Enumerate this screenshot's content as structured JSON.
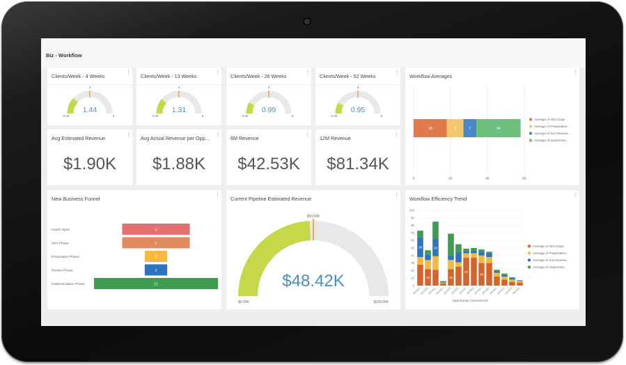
{
  "dashboard": {
    "title": "Biz - Workflow"
  },
  "colors": {
    "gauge_fill": "#c5d84a",
    "gauge_track": "#e8e8e8",
    "marker": "#f08a24",
    "value_text": "#4a8ccc"
  },
  "gauges": [
    {
      "title": "Clients/Week - 4 Weeks",
      "min": "0.00",
      "max": "6",
      "target": "3",
      "value": "1.44",
      "fraction": 0.24
    },
    {
      "title": "Clients/Week - 13 Weeks",
      "min": "0.00",
      "max": "6",
      "target": "3",
      "value": "1.31",
      "fraction": 0.22
    },
    {
      "title": "Clients/Week - 26 Weeks",
      "min": "0.00",
      "max": "6",
      "target": "3",
      "value": "0.99",
      "fraction": 0.165
    },
    {
      "title": "Clients/Week - 52 Weeks",
      "min": "0.00",
      "max": "6",
      "target": "3",
      "value": "0.95",
      "fraction": 0.158
    }
  ],
  "kpis": [
    {
      "title": "Avg Estimated Revenue",
      "value": "$1.90K"
    },
    {
      "title": "Avg Actual Revenue per Opp...",
      "value": "$1.88K"
    },
    {
      "title": "6M Revenue",
      "value": "$42.53K"
    },
    {
      "title": "12M Revenue",
      "value": "$81.34K"
    }
  ],
  "workflow_averages": {
    "title": "Workflow Averages",
    "chart_data": {
      "type": "bar",
      "orientation": "horizontal-stacked",
      "series": [
        {
          "name": "Average of Intro Days",
          "value": 18,
          "color": "#e07b4f"
        },
        {
          "name": "Average of Preparation...",
          "value": 9,
          "color": "#f5c76b"
        },
        {
          "name": "Average of SoA Review...",
          "value": 7,
          "color": "#4a86c8"
        },
        {
          "name": "Average of Implement...",
          "value": 24,
          "color": "#6dbf7d"
        }
      ],
      "xlim": [
        0,
        60
      ],
      "xticks": [
        "0",
        "20",
        "40",
        "60"
      ]
    }
  },
  "funnel": {
    "title": "New Business Funnel",
    "chart_data": {
      "type": "bar",
      "orientation": "funnel",
      "categories": [
        "Leads Open",
        "Intro Phase",
        "Preparation Phase",
        "Review Phase",
        "Implementation Phase"
      ],
      "values": [
        6,
        6,
        2,
        2,
        11
      ],
      "labels": [
        "6",
        "6",
        "2",
        "2",
        "11"
      ],
      "colors": [
        "#e36f6f",
        "#e08a5e",
        "#f5b942",
        "#2f73c0",
        "#3d9c4f"
      ]
    }
  },
  "pipeline": {
    "title": "Current Pipeline Estimated Revenue",
    "value": "$48.42K",
    "min": "$0.00K",
    "max": "$100.00K",
    "target": "$50.00K",
    "fraction": 0.4842
  },
  "efficiency": {
    "title": "Workflow Efficiency Trend",
    "xlabel": "Opportunity Commenced",
    "chart_data": {
      "type": "bar",
      "stacked": true,
      "ylim": [
        0,
        100
      ],
      "yticks": [
        "0",
        "10",
        "20",
        "30",
        "40",
        "50",
        "60",
        "70",
        "80",
        "90",
        "100"
      ],
      "categories": [
        "2015Q3",
        "2015Q4",
        "2015Q1",
        "2015Q2",
        "2016Q3",
        "2016Q4",
        "2016Q1",
        "2016Q2",
        "2016Q3",
        "2016Q4",
        "2016Q1",
        "2016Q2",
        "2016Q3",
        "2016Q4"
      ],
      "series": [
        {
          "name": "Average of Intro Days",
          "color": "#d4642b",
          "values": [
            28,
            22,
            21,
            3,
            22,
            25,
            37,
            37,
            30,
            30,
            12,
            8,
            5,
            4
          ],
          "labels": [
            "",
            "22",
            "",
            "",
            "22",
            "",
            "37",
            "",
            "30",
            "",
            "",
            "",
            "",
            ""
          ]
        },
        {
          "name": "Average of Preparation...",
          "color": "#f5b942",
          "values": [
            10,
            12,
            18,
            1,
            12,
            6,
            6,
            6,
            10,
            8,
            5,
            4,
            3,
            2
          ],
          "labels": [
            "",
            "",
            "",
            "",
            "",
            "",
            "",
            "",
            "",
            "",
            "",
            "",
            "",
            ""
          ]
        },
        {
          "name": "Average of SoA Review...",
          "color": "#2f73c0",
          "values": [
            26,
            7,
            23,
            1,
            6,
            13,
            3,
            4,
            5,
            5,
            2,
            2,
            2,
            1
          ],
          "labels": [
            "26",
            "",
            "23",
            "",
            "",
            "",
            "",
            "",
            "",
            "",
            "",
            "",
            "",
            ""
          ]
        },
        {
          "name": "Average of Implement...",
          "color": "#3d9c4f",
          "values": [
            9,
            6,
            23,
            1,
            29,
            11,
            3,
            3,
            3,
            2,
            2,
            2,
            1,
            0
          ],
          "labels": [
            "",
            "",
            "",
            "",
            "",
            "",
            "",
            "",
            "",
            "",
            "",
            "",
            "",
            ""
          ]
        }
      ]
    }
  }
}
